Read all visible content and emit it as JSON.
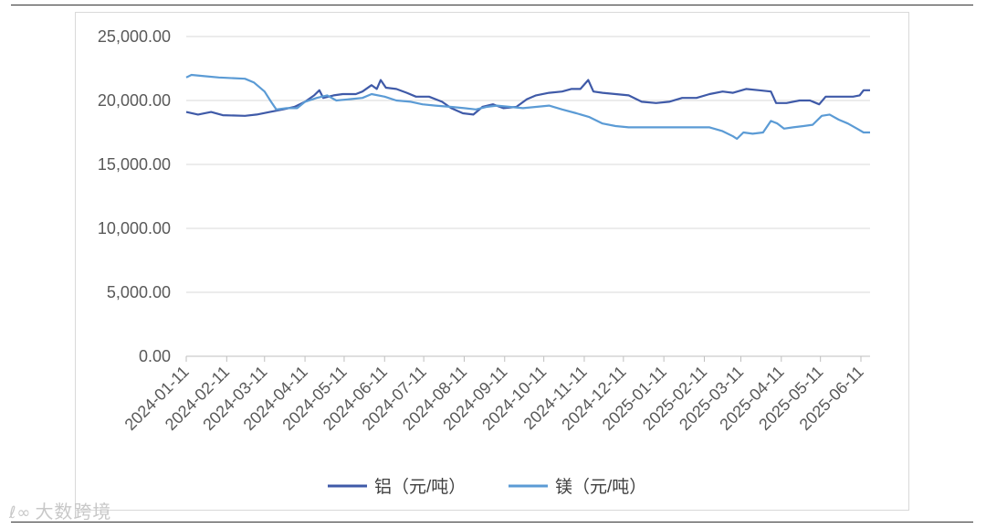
{
  "chart_data": {
    "type": "line",
    "title": "",
    "xlabel": "",
    "ylabel": "",
    "ylim": [
      0,
      25000
    ],
    "yticks": [
      "25,000.00",
      "20,000.00",
      "15,000.00",
      "10,000.00",
      "5,000.00",
      "0.00"
    ],
    "ytick_values": [
      25000,
      20000,
      15000,
      10000,
      5000,
      0
    ],
    "xticks": [
      "2024-01-11",
      "2024-02-11",
      "2024-03-11",
      "2024-04-11",
      "2024-05-11",
      "2024-06-11",
      "2024-07-11",
      "2024-08-11",
      "2024-09-11",
      "2024-10-11",
      "2024-11-11",
      "2024-12-11",
      "2025-01-11",
      "2025-02-11",
      "2025-03-11",
      "2025-04-11",
      "2025-05-11",
      "2025-06-11"
    ],
    "grid": true,
    "legend_position": "bottom",
    "series": [
      {
        "name": "铝（元/吨）",
        "color": "#3f5aa8",
        "points": [
          [
            "2024-01-11",
            19100
          ],
          [
            "2024-01-20",
            18900
          ],
          [
            "2024-01-30",
            19100
          ],
          [
            "2024-02-08",
            18850
          ],
          [
            "2024-02-25",
            18800
          ],
          [
            "2024-03-05",
            18900
          ],
          [
            "2024-03-15",
            19100
          ],
          [
            "2024-03-25",
            19300
          ],
          [
            "2024-04-03",
            19500
          ],
          [
            "2024-04-11",
            19900
          ],
          [
            "2024-04-18",
            20400
          ],
          [
            "2024-04-22",
            20800
          ],
          [
            "2024-04-25",
            20200
          ],
          [
            "2024-05-03",
            20400
          ],
          [
            "2024-05-10",
            20500
          ],
          [
            "2024-05-20",
            20500
          ],
          [
            "2024-05-25",
            20700
          ],
          [
            "2024-06-01",
            21200
          ],
          [
            "2024-06-05",
            20900
          ],
          [
            "2024-06-08",
            21600
          ],
          [
            "2024-06-12",
            21000
          ],
          [
            "2024-06-20",
            20900
          ],
          [
            "2024-06-28",
            20600
          ],
          [
            "2024-07-05",
            20300
          ],
          [
            "2024-07-15",
            20300
          ],
          [
            "2024-07-25",
            19900
          ],
          [
            "2024-08-01",
            19400
          ],
          [
            "2024-08-10",
            19000
          ],
          [
            "2024-08-18",
            18900
          ],
          [
            "2024-08-25",
            19500
          ],
          [
            "2024-09-02",
            19700
          ],
          [
            "2024-09-10",
            19400
          ],
          [
            "2024-09-20",
            19500
          ],
          [
            "2024-09-28",
            20100
          ],
          [
            "2024-10-05",
            20400
          ],
          [
            "2024-10-15",
            20600
          ],
          [
            "2024-10-25",
            20700
          ],
          [
            "2024-11-01",
            20900
          ],
          [
            "2024-11-08",
            20900
          ],
          [
            "2024-11-14",
            21600
          ],
          [
            "2024-11-18",
            20700
          ],
          [
            "2024-11-25",
            20600
          ],
          [
            "2024-12-05",
            20500
          ],
          [
            "2024-12-15",
            20400
          ],
          [
            "2024-12-25",
            19900
          ],
          [
            "2025-01-05",
            19800
          ],
          [
            "2025-01-15",
            19900
          ],
          [
            "2025-01-25",
            20200
          ],
          [
            "2025-02-05",
            20200
          ],
          [
            "2025-02-15",
            20500
          ],
          [
            "2025-02-25",
            20700
          ],
          [
            "2025-03-05",
            20600
          ],
          [
            "2025-03-15",
            20900
          ],
          [
            "2025-03-25",
            20800
          ],
          [
            "2025-04-03",
            20700
          ],
          [
            "2025-04-07",
            19800
          ],
          [
            "2025-04-15",
            19800
          ],
          [
            "2025-04-25",
            20000
          ],
          [
            "2025-05-03",
            20000
          ],
          [
            "2025-05-10",
            19700
          ],
          [
            "2025-05-15",
            20300
          ],
          [
            "2025-05-25",
            20300
          ],
          [
            "2025-06-05",
            20300
          ],
          [
            "2025-06-10",
            20400
          ],
          [
            "2025-06-13",
            20800
          ],
          [
            "2025-06-18",
            20800
          ]
        ]
      },
      {
        "name": "镁（元/吨）",
        "color": "#5b9bd5",
        "points": [
          [
            "2024-01-11",
            21800
          ],
          [
            "2024-01-15",
            22000
          ],
          [
            "2024-01-25",
            21900
          ],
          [
            "2024-02-05",
            21800
          ],
          [
            "2024-02-25",
            21700
          ],
          [
            "2024-03-03",
            21400
          ],
          [
            "2024-03-11",
            20700
          ],
          [
            "2024-03-16",
            19900
          ],
          [
            "2024-03-20",
            19300
          ],
          [
            "2024-03-28",
            19400
          ],
          [
            "2024-04-05",
            19400
          ],
          [
            "2024-04-11",
            19900
          ],
          [
            "2024-04-20",
            20200
          ],
          [
            "2024-04-28",
            20400
          ],
          [
            "2024-05-05",
            20000
          ],
          [
            "2024-05-15",
            20100
          ],
          [
            "2024-05-25",
            20200
          ],
          [
            "2024-06-01",
            20500
          ],
          [
            "2024-06-11",
            20300
          ],
          [
            "2024-06-20",
            20000
          ],
          [
            "2024-07-01",
            19900
          ],
          [
            "2024-07-10",
            19700
          ],
          [
            "2024-07-20",
            19600
          ],
          [
            "2024-08-01",
            19500
          ],
          [
            "2024-08-11",
            19400
          ],
          [
            "2024-08-20",
            19300
          ],
          [
            "2024-08-28",
            19500
          ],
          [
            "2024-09-05",
            19600
          ],
          [
            "2024-09-15",
            19500
          ],
          [
            "2024-09-25",
            19400
          ],
          [
            "2024-10-05",
            19500
          ],
          [
            "2024-10-15",
            19600
          ],
          [
            "2024-10-25",
            19300
          ],
          [
            "2024-11-05",
            19000
          ],
          [
            "2024-11-15",
            18700
          ],
          [
            "2024-11-25",
            18200
          ],
          [
            "2024-12-05",
            18000
          ],
          [
            "2024-12-15",
            17900
          ],
          [
            "2025-01-01",
            17900
          ],
          [
            "2025-02-01",
            17900
          ],
          [
            "2025-02-15",
            17900
          ],
          [
            "2025-02-25",
            17600
          ],
          [
            "2025-03-05",
            17200
          ],
          [
            "2025-03-08",
            17000
          ],
          [
            "2025-03-13",
            17500
          ],
          [
            "2025-03-20",
            17400
          ],
          [
            "2025-03-28",
            17500
          ],
          [
            "2025-04-03",
            18400
          ],
          [
            "2025-04-08",
            18200
          ],
          [
            "2025-04-13",
            17800
          ],
          [
            "2025-04-20",
            17900
          ],
          [
            "2025-04-28",
            18000
          ],
          [
            "2025-05-05",
            18100
          ],
          [
            "2025-05-12",
            18800
          ],
          [
            "2025-05-18",
            18900
          ],
          [
            "2025-05-25",
            18500
          ],
          [
            "2025-06-01",
            18200
          ],
          [
            "2025-06-08",
            17800
          ],
          [
            "2025-06-13",
            17500
          ],
          [
            "2025-06-18",
            17500
          ]
        ]
      }
    ]
  },
  "watermark": {
    "logo": "ℓ∞",
    "text": "大数跨境"
  }
}
